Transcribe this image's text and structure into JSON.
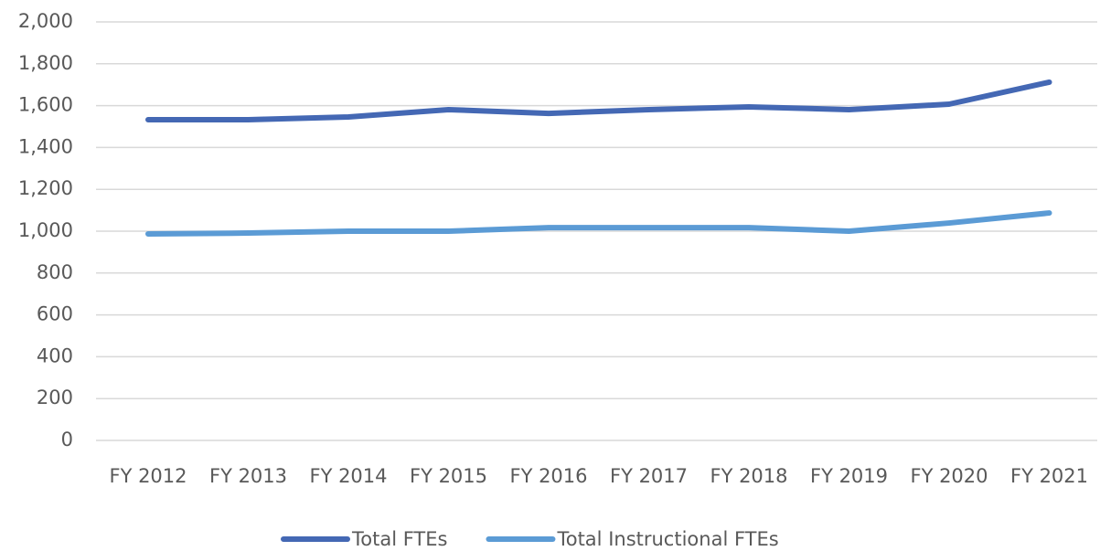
{
  "chart_data": {
    "type": "line",
    "categories": [
      "FY 2012",
      "FY 2013",
      "FY 2014",
      "FY 2015",
      "FY 2016",
      "FY 2017",
      "FY 2018",
      "FY 2019",
      "FY 2020",
      "FY 2021"
    ],
    "series": [
      {
        "name": "Total FTEs",
        "color": "#4468b4",
        "values": [
          1533,
          1533,
          1546,
          1581,
          1563,
          1581,
          1594,
          1581,
          1607,
          1712
        ]
      },
      {
        "name": "Total Instructional FTEs",
        "color": "#5b9bd5",
        "values": [
          987,
          991,
          1000,
          1000,
          1017,
          1017,
          1017,
          1000,
          1039,
          1087
        ]
      }
    ],
    "ylim": [
      0,
      2000
    ],
    "yticks": [
      0,
      200,
      400,
      600,
      800,
      {
        "value": 1000,
        "label": "1,000"
      },
      {
        "value": 1200,
        "label": "1,200"
      },
      {
        "value": 1400,
        "label": "1,400"
      },
      {
        "value": 1600,
        "label": "1,600"
      },
      {
        "value": 1800,
        "label": "1,800"
      },
      {
        "value": 2000,
        "label": "2,000"
      }
    ],
    "grid": true,
    "legend": "bottom"
  }
}
